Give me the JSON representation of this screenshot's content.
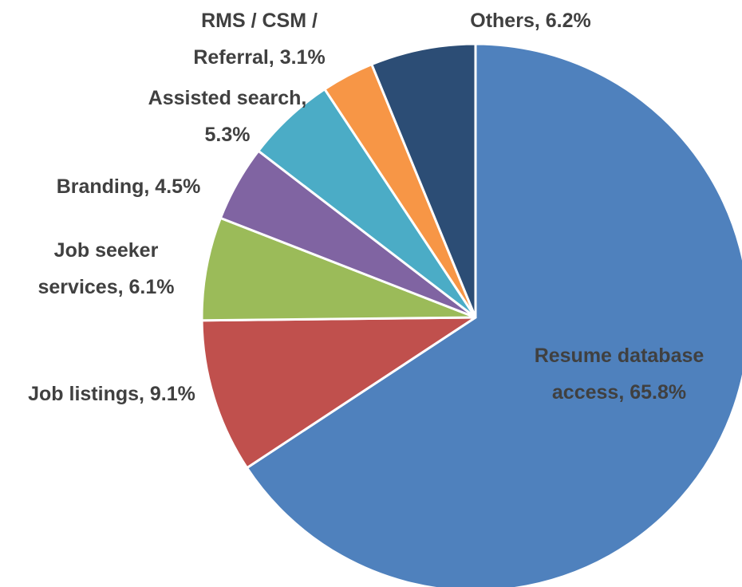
{
  "chart_data": {
    "type": "pie",
    "categories": [
      "Resume database\naccess, 65.8%",
      "Job listings, 9.1%",
      "Job seeker\nservices, 6.1%",
      "Branding, 4.5%",
      "Assisted search,\n5.3%",
      "RMS / CSM /\nReferral, 3.1%",
      "Others, 6.2%"
    ],
    "values": [
      65.8,
      9.1,
      6.1,
      4.5,
      5.3,
      3.1,
      6.2
    ],
    "colors": [
      "#4f81bd",
      "#c0504d",
      "#9bbb59",
      "#8064a2",
      "#4bacc6",
      "#f79646",
      "#2c4d75"
    ]
  }
}
